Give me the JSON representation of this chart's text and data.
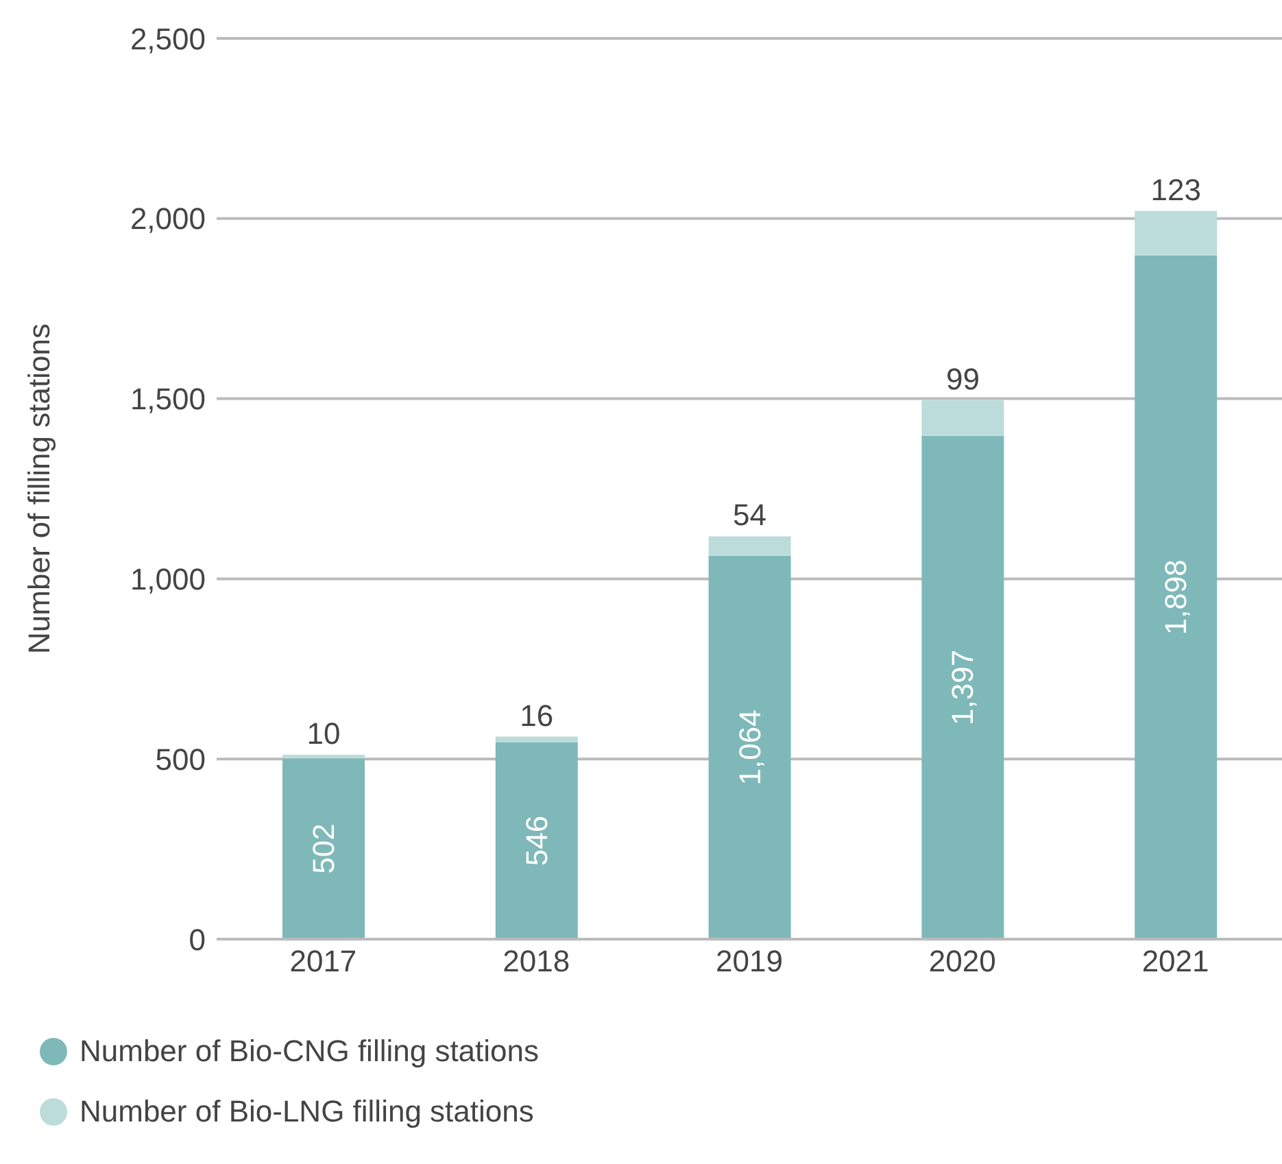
{
  "chart_data": {
    "type": "bar",
    "stacked": true,
    "ylabel": "Number of filling stations",
    "categories": [
      "2017",
      "2018",
      "2019",
      "2020",
      "2021"
    ],
    "series": [
      {
        "name": "Number of Bio-CNG filling stations",
        "color": "#7fb8b8",
        "values": [
          502,
          546,
          1064,
          1397,
          1898
        ],
        "value_labels": [
          "502",
          "546",
          "1,064",
          "1,397",
          "1,898"
        ]
      },
      {
        "name": "Number of Bio-LNG filling stations",
        "color": "#bcdcdc",
        "values": [
          10,
          16,
          54,
          99,
          123
        ],
        "value_labels": [
          "10",
          "16",
          "54",
          "99",
          "123"
        ]
      }
    ],
    "ylim": [
      0,
      2500
    ],
    "yticks": [
      0,
      500,
      {
        "value": 1000,
        "label": "1,000"
      },
      {
        "value": 1500,
        "label": "1,500"
      },
      {
        "value": 2000,
        "label": "2,000"
      },
      {
        "value": 2500,
        "label": "2,500"
      }
    ],
    "grid": "y",
    "legend": "bottom left"
  }
}
